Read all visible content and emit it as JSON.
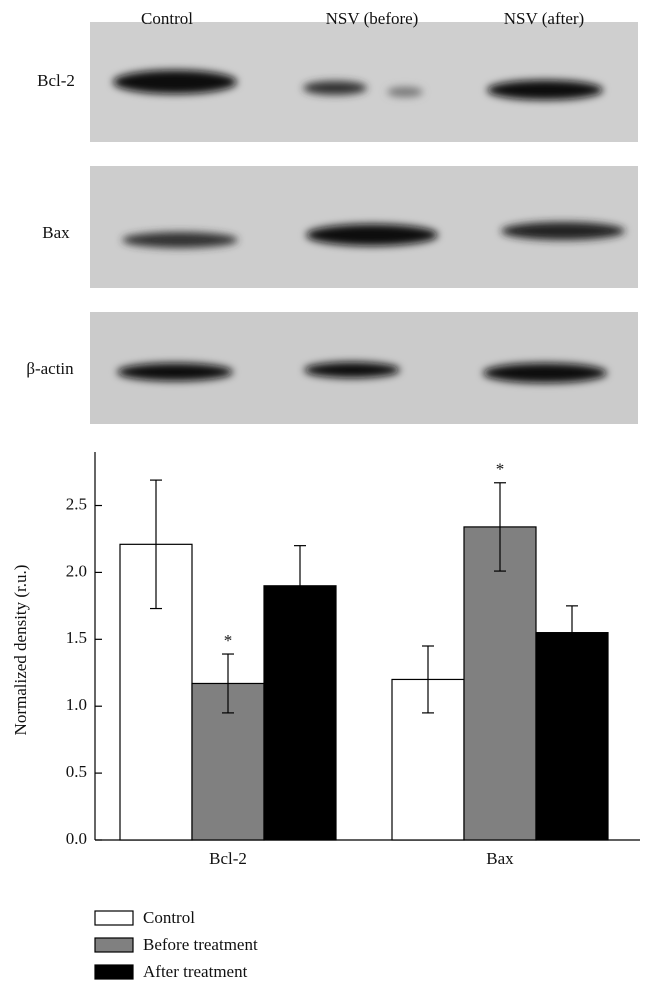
{
  "blot": {
    "columns": [
      "Control",
      "NSV (before)",
      "NSV (after)"
    ],
    "rows": [
      "Bcl-2",
      "Bax",
      "β-actin"
    ]
  },
  "chart_data": {
    "type": "bar",
    "ylabel": "Normalized density (r.u.)",
    "categories": [
      "Bcl-2",
      "Bax"
    ],
    "series": [
      {
        "name": "Control",
        "color": "#ffffff",
        "values": [
          2.21,
          1.2
        ],
        "errors": [
          0.48,
          0.25
        ]
      },
      {
        "name": "Before treatment",
        "color": "#808080",
        "values": [
          1.17,
          2.34
        ],
        "errors": [
          0.22,
          0.33
        ],
        "labels": [
          "*",
          "*"
        ]
      },
      {
        "name": "After treatment",
        "color": "#000000",
        "values": [
          1.9,
          1.55
        ],
        "errors": [
          0.3,
          0.2
        ]
      }
    ],
    "ylim": [
      0,
      2.9
    ],
    "yticks": [
      {
        "value": 0,
        "label": "0.0"
      },
      {
        "value": 0.5,
        "label": "0.5"
      },
      {
        "value": 1,
        "label": "1.0"
      },
      {
        "value": 1.5,
        "label": "1.5"
      },
      {
        "value": 2,
        "label": "2.0"
      },
      {
        "value": 2.5,
        "label": "2.5"
      }
    ],
    "legend": "bottom-left"
  }
}
